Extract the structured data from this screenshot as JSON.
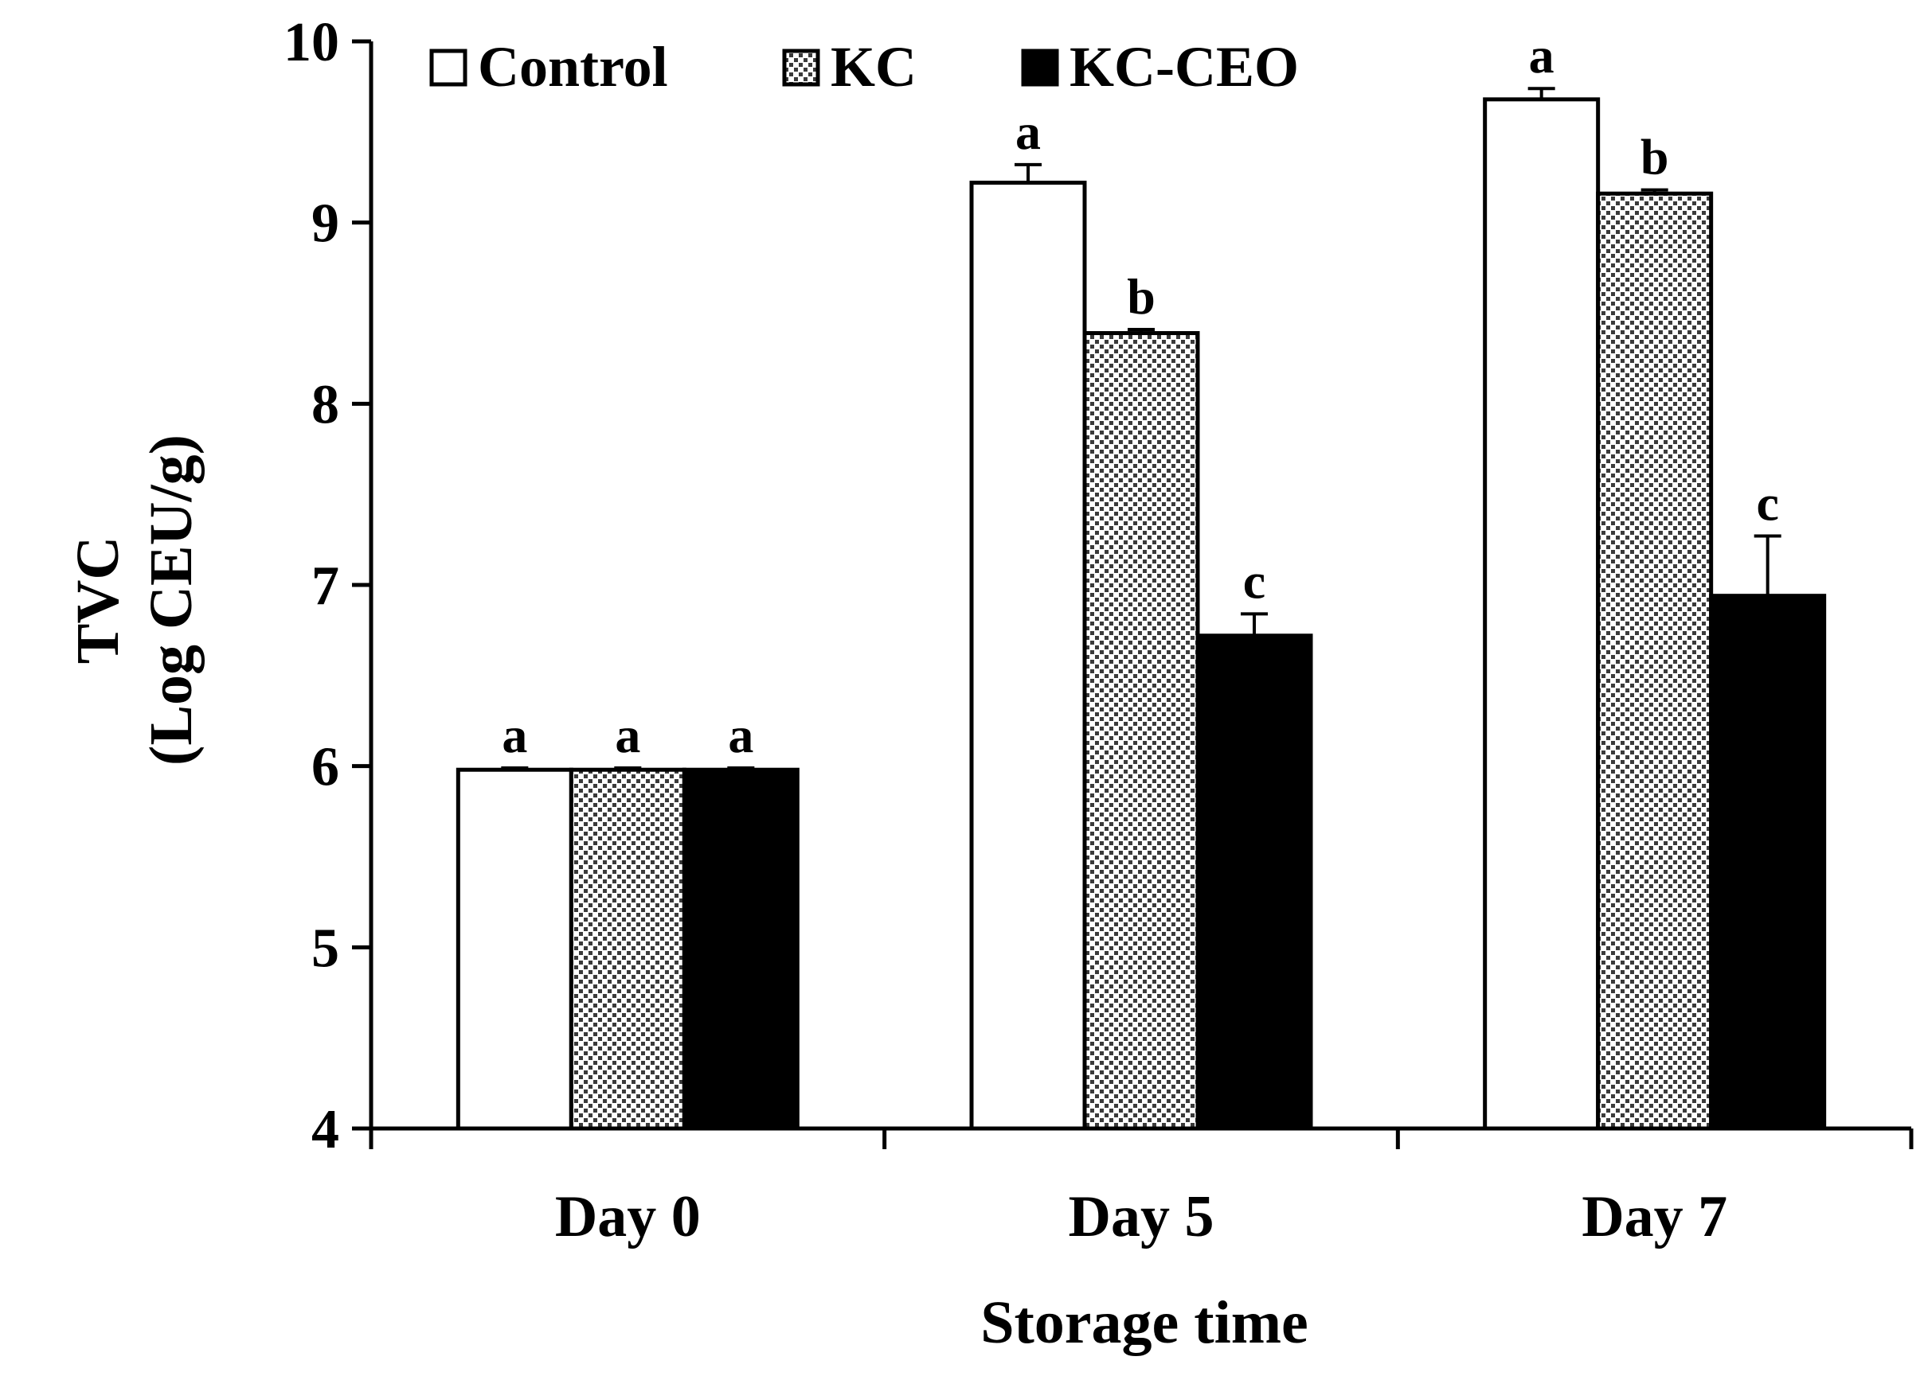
{
  "chart_data": {
    "type": "bar",
    "title": "",
    "xlabel": "Storage time",
    "ylabel": [
      "TVC",
      "(Log CEU/g)"
    ],
    "ylim": [
      4,
      10
    ],
    "yticks": [
      4,
      5,
      6,
      7,
      8,
      9,
      10
    ],
    "categories": [
      "Day 0",
      "Day 5",
      "Day 7"
    ],
    "legend_position": "top",
    "series": [
      {
        "name": "Control",
        "fill": "white",
        "values": [
          5.98,
          9.22,
          9.68
        ],
        "errors": [
          0.01,
          0.1,
          0.06
        ],
        "letters": [
          "a",
          "a",
          "a"
        ]
      },
      {
        "name": "KC",
        "fill": "dotted",
        "values": [
          5.98,
          8.39,
          9.16
        ],
        "errors": [
          0.01,
          0.02,
          0.02
        ],
        "letters": [
          "a",
          "b",
          "b"
        ]
      },
      {
        "name": "KC-CEO",
        "fill": "black",
        "values": [
          5.98,
          6.72,
          6.94
        ],
        "errors": [
          0.01,
          0.12,
          0.33
        ],
        "letters": [
          "a",
          "c",
          "c"
        ]
      }
    ]
  }
}
